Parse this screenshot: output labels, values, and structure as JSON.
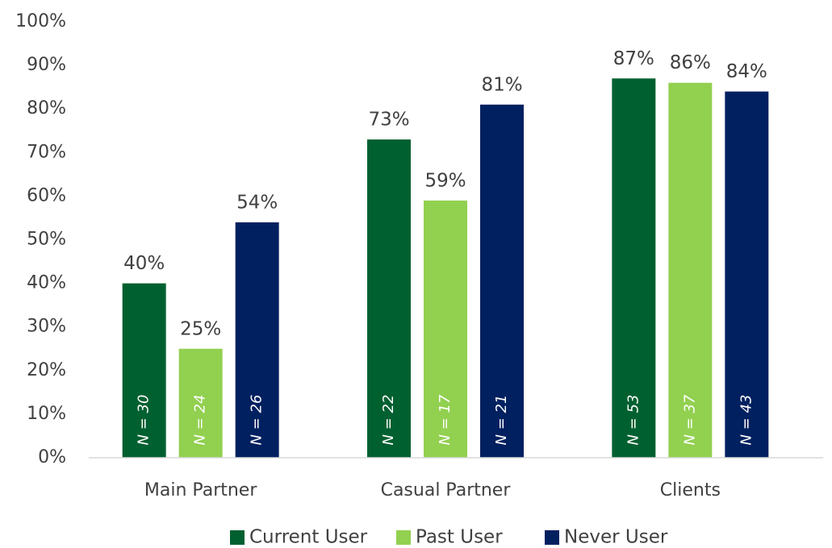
{
  "chart_data": {
    "type": "bar",
    "categories": [
      "Main Partner",
      "Casual Partner",
      "Clients"
    ],
    "series": [
      {
        "name": "Current User",
        "color": "#006030",
        "values": [
          40,
          73,
          87
        ],
        "value_labels": [
          "40%",
          "73%",
          "87%"
        ],
        "n_labels": [
          "N = 30",
          "N = 22",
          "N = 53"
        ]
      },
      {
        "name": "Past User",
        "color": "#92d050",
        "values": [
          25,
          59,
          86
        ],
        "value_labels": [
          "25%",
          "59%",
          "86%"
        ],
        "n_labels": [
          "N = 24",
          "N = 17",
          "N = 37"
        ]
      },
      {
        "name": "Never User",
        "color": "#002060",
        "values": [
          54,
          81,
          84
        ],
        "value_labels": [
          "54%",
          "81%",
          "84%"
        ],
        "n_labels": [
          "N = 26",
          "N = 21",
          "N = 43"
        ]
      }
    ],
    "ylim": [
      0,
      100
    ],
    "yticks": [
      {
        "value": 0,
        "label": "0%"
      },
      {
        "value": 10,
        "label": "10%"
      },
      {
        "value": 20,
        "label": "20%"
      },
      {
        "value": 30,
        "label": "30%"
      },
      {
        "value": 40,
        "label": "40%"
      },
      {
        "value": 50,
        "label": "50%"
      },
      {
        "value": 60,
        "label": "60%"
      },
      {
        "value": 70,
        "label": "70%"
      },
      {
        "value": 80,
        "label": "80%"
      },
      {
        "value": 90,
        "label": "90%"
      },
      {
        "value": 100,
        "label": "100%"
      }
    ],
    "grid": false,
    "legend": "bottom"
  }
}
